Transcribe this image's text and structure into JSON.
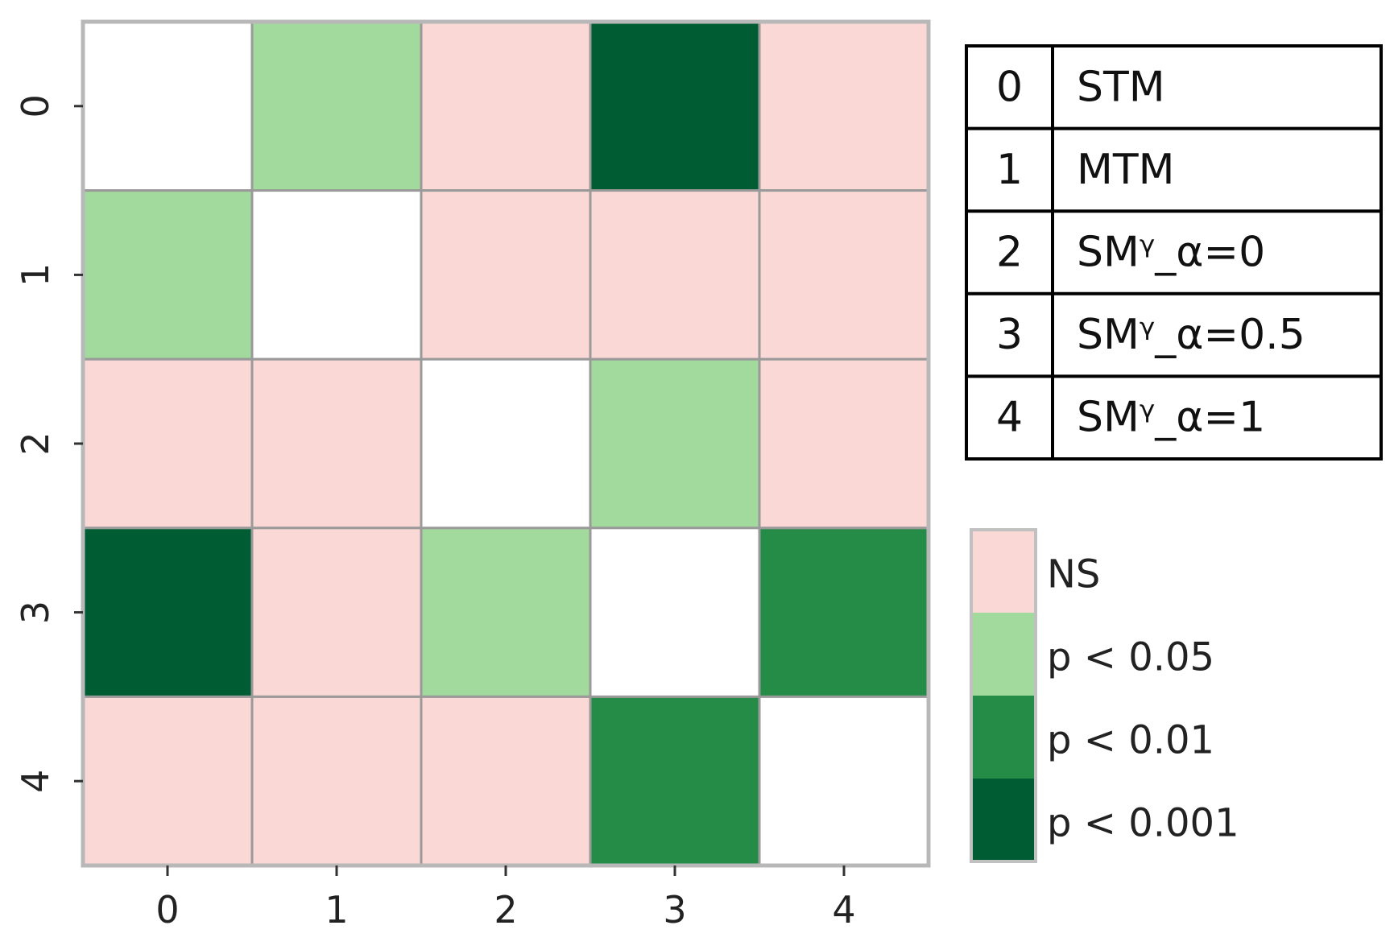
{
  "chart_data": {
    "type": "heatmap",
    "x_ticks": [
      "0",
      "1",
      "2",
      "3",
      "4"
    ],
    "y_ticks": [
      "0",
      "1",
      "2",
      "3",
      "4"
    ],
    "matrix": [
      [
        null,
        "p < 0.05",
        "NS",
        "p < 0.001",
        "NS"
      ],
      [
        "p < 0.05",
        null,
        "NS",
        "NS",
        "NS"
      ],
      [
        "NS",
        "NS",
        null,
        "p < 0.05",
        "NS"
      ],
      [
        "p < 0.001",
        "NS",
        "p < 0.05",
        null,
        "p < 0.01"
      ],
      [
        "NS",
        "NS",
        "NS",
        "p < 0.01",
        null
      ]
    ],
    "legend": [
      {
        "label": "NS",
        "color": "#fad8d5"
      },
      {
        "label": "p < 0.05",
        "color": "#a2d99c"
      },
      {
        "label": "p < 0.01",
        "color": "#258c47"
      },
      {
        "label": "p < 0.001",
        "color": "#005c32"
      }
    ],
    "diagonal_color": "#ffffff",
    "key_table": [
      {
        "index": "0",
        "name": "STM"
      },
      {
        "index": "1",
        "name": "MTM"
      },
      {
        "index": "2",
        "name": "SMᵞ_α=0"
      },
      {
        "index": "3",
        "name": "SMᵞ_α=0.5"
      },
      {
        "index": "4",
        "name": "SMᵞ_α=1"
      }
    ]
  }
}
